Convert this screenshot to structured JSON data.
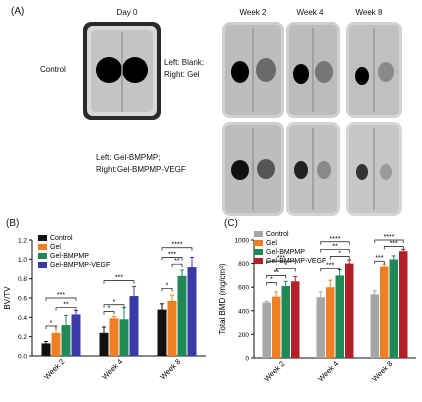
{
  "panel_a": {
    "letter": "(A)",
    "columns": [
      "Day 0",
      "Week 2",
      "Week 4",
      "Week 8"
    ],
    "row_labels": {
      "control": "Control",
      "blank_gel": [
        "Left: Blank;",
        "Right: Gel"
      ],
      "bmp": [
        "Left: Gel-BMPMP;",
        "Right:Gel-BMPMP-VEGF"
      ]
    }
  },
  "panel_b": {
    "letter": "(B)"
  },
  "panel_c": {
    "letter": "(C)"
  },
  "colors": {
    "Control": "#111111",
    "Gel": "#f07f23",
    "Gel-BMPMP": "#1f8a57",
    "Gel-BMPMP-VEGF": "#3a3aa6",
    "Control_c": "#a6a6a6",
    "Gel-BMPMP-VEGF_c": "#b3202a"
  },
  "chart_data": [
    {
      "type": "bar",
      "ylabel": "BV/TV",
      "categories": [
        "Week 2",
        "Week 4",
        "Week 8"
      ],
      "ylim": [
        0,
        1.2
      ],
      "yticks": [
        "0.0",
        "0.2",
        "0.4",
        "0.6",
        "0.8",
        "1.0",
        "1.2"
      ],
      "legend_placement": "top-left",
      "series": [
        {
          "name": "Control",
          "values": [
            0.13,
            0.24,
            0.48
          ],
          "errors": [
            0.02,
            0.06,
            0.06
          ]
        },
        {
          "name": "Gel",
          "values": [
            0.24,
            0.39,
            0.57
          ],
          "errors": [
            0.07,
            0.02,
            0.06
          ]
        },
        {
          "name": "Gel-BMPMP",
          "values": [
            0.32,
            0.38,
            0.83
          ],
          "errors": [
            0.1,
            0.12,
            0.06
          ]
        },
        {
          "name": "Gel-BMPMP-VEGF",
          "values": [
            0.43,
            0.62,
            0.92
          ],
          "errors": [
            0.04,
            0.1,
            0.1
          ]
        }
      ],
      "significance": [
        {
          "group": 0,
          "from": 0,
          "to": 1,
          "y": 0.31,
          "label": "*"
        },
        {
          "group": 0,
          "from": 1,
          "to": 3,
          "y": 0.5,
          "label": "**"
        },
        {
          "group": 0,
          "from": 0,
          "to": 3,
          "y": 0.6,
          "label": "***"
        },
        {
          "group": 1,
          "from": 0,
          "to": 1,
          "y": 0.46,
          "label": "*"
        },
        {
          "group": 1,
          "from": 0,
          "to": 2,
          "y": 0.53,
          "label": "*"
        },
        {
          "group": 1,
          "from": 0,
          "to": 3,
          "y": 0.78,
          "label": "***"
        },
        {
          "group": 2,
          "from": 0,
          "to": 1,
          "y": 0.7,
          "label": "*"
        },
        {
          "group": 2,
          "from": 1,
          "to": 2,
          "y": 0.95,
          "label": "**"
        },
        {
          "group": 2,
          "from": 0,
          "to": 2,
          "y": 1.02,
          "label": "***"
        },
        {
          "group": 2,
          "from": 0,
          "to": 3,
          "y": 1.12,
          "label": "****"
        }
      ]
    },
    {
      "type": "bar",
      "ylabel": "Total BMD (mg/cm³)",
      "categories": [
        "Week 2",
        "Week 4",
        "Week 8"
      ],
      "ylim": [
        0,
        1000
      ],
      "yticks": [
        "0",
        "200",
        "400",
        "600",
        "800",
        "1000"
      ],
      "legend_placement": "top-left",
      "series": [
        {
          "name": "Control",
          "values": [
            470,
            515,
            540
          ],
          "errors": [
            10,
            45,
            30
          ]
        },
        {
          "name": "Gel",
          "values": [
            520,
            600,
            775
          ],
          "errors": [
            40,
            60,
            20
          ]
        },
        {
          "name": "Gel-BMPMP",
          "values": [
            610,
            700,
            835
          ],
          "errors": [
            40,
            50,
            30
          ]
        },
        {
          "name": "Gel-BMPMP-VEGF",
          "values": [
            650,
            800,
            905
          ],
          "errors": [
            40,
            30,
            15
          ]
        }
      ],
      "significance": [
        {
          "group": 0,
          "from": 0,
          "to": 1,
          "y": 640,
          "label": "*"
        },
        {
          "group": 0,
          "from": 0,
          "to": 2,
          "y": 700,
          "label": "**"
        },
        {
          "group": 0,
          "from": 1,
          "to": 3,
          "y": 760,
          "label": "*"
        },
        {
          "group": 0,
          "from": 0,
          "to": 3,
          "y": 820,
          "label": "***"
        },
        {
          "group": 1,
          "from": 0,
          "to": 2,
          "y": 760,
          "label": "***"
        },
        {
          "group": 1,
          "from": 1,
          "to": 3,
          "y": 860,
          "label": "*"
        },
        {
          "group": 1,
          "from": 0,
          "to": 3,
          "y": 920,
          "label": "**"
        },
        {
          "group": 1,
          "from": 0,
          "to": 3,
          "y": 985,
          "label": "****"
        },
        {
          "group": 2,
          "from": 0,
          "to": 1,
          "y": 820,
          "label": "***"
        },
        {
          "group": 2,
          "from": 1,
          "to": 3,
          "y": 945,
          "label": "***"
        },
        {
          "group": 2,
          "from": 0,
          "to": 3,
          "y": 1000,
          "label": "****"
        }
      ]
    }
  ]
}
